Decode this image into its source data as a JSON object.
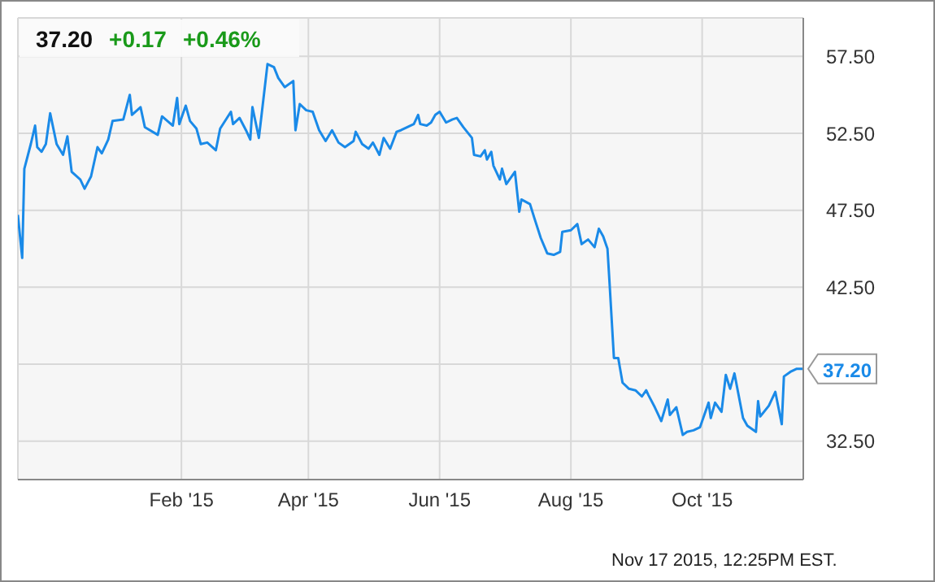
{
  "chart_data": {
    "type": "line",
    "title": "37.20",
    "annotations": [
      "+0.17",
      "+0.46%",
      {
        "text": "37.20",
        "x": "2015-11-17",
        "y": 37.2
      },
      "Nov 17 2015, 12:25PM EST."
    ],
    "x": [
      "2014-11-17",
      "2014-11-19",
      "2014-11-20",
      "2014-11-23",
      "2014-11-25",
      "2014-11-26",
      "2014-11-28",
      "2014-11-30",
      "2014-12-02",
      "2014-12-05",
      "2014-12-08",
      "2014-12-10",
      "2014-12-12",
      "2014-12-16",
      "2014-12-18",
      "2014-12-21",
      "2014-12-24",
      "2014-12-26",
      "2014-12-29",
      "2014-12-31",
      "2015-01-05",
      "2015-01-08",
      "2015-01-09",
      "2015-01-13",
      "2015-01-15",
      "2015-01-21",
      "2015-01-23",
      "2015-01-28",
      "2015-01-30",
      "2015-01-31",
      "2015-02-03",
      "2015-02-05",
      "2015-02-08",
      "2015-02-10",
      "2015-02-13",
      "2015-02-17",
      "2015-02-19",
      "2015-02-24",
      "2015-02-25",
      "2015-02-28",
      "2015-03-03",
      "2015-03-05",
      "2015-03-06",
      "2015-03-09",
      "2015-03-11",
      "2015-03-13",
      "2015-03-16",
      "2015-03-18",
      "2015-03-21",
      "2015-03-25",
      "2015-03-26",
      "2015-03-28",
      "2015-03-31",
      "2015-04-03",
      "2015-04-06",
      "2015-04-09",
      "2015-04-12",
      "2015-04-15",
      "2015-04-18",
      "2015-04-22",
      "2015-04-23",
      "2015-04-26",
      "2015-04-29",
      "2015-05-01",
      "2015-05-04",
      "2015-05-06",
      "2015-05-09",
      "2015-05-12",
      "2015-05-14",
      "2015-05-20",
      "2015-05-22",
      "2015-05-23",
      "2015-05-26",
      "2015-05-28",
      "2015-05-30",
      "2015-06-01",
      "2015-06-04",
      "2015-06-07",
      "2015-06-09",
      "2015-06-12",
      "2015-06-16",
      "2015-06-17",
      "2015-06-20",
      "2015-06-22",
      "2015-06-23",
      "2015-06-25",
      "2015-06-26",
      "2015-06-29",
      "2015-06-30",
      "2015-07-02",
      "2015-07-06",
      "2015-07-08",
      "2015-07-09",
      "2015-07-13",
      "2015-07-15",
      "2015-07-18",
      "2015-07-21",
      "2015-07-24",
      "2015-07-27",
      "2015-07-28",
      "2015-08-01",
      "2015-08-04",
      "2015-08-06",
      "2015-08-09",
      "2015-08-12",
      "2015-08-14",
      "2015-08-16",
      "2015-08-18",
      "2015-08-19",
      "2015-08-21",
      "2015-08-23",
      "2015-08-25",
      "2015-08-28",
      "2015-08-31",
      "2015-09-03",
      "2015-09-05",
      "2015-09-06",
      "2015-09-09",
      "2015-09-12",
      "2015-09-15",
      "2015-09-16",
      "2015-09-19",
      "2015-09-22",
      "2015-09-24",
      "2015-09-27",
      "2015-09-30",
      "2015-10-04",
      "2015-10-05",
      "2015-10-07",
      "2015-10-10",
      "2015-10-12",
      "2015-10-14",
      "2015-10-16",
      "2015-10-20",
      "2015-10-22",
      "2015-10-26",
      "2015-10-27",
      "2015-10-28",
      "2015-11-01",
      "2015-11-04",
      "2015-11-07",
      "2015-11-08",
      "2015-11-11",
      "2015-11-14",
      "2015-11-17"
    ],
    "series": [
      {
        "color": "#1a8ae8",
        "values": [
          47.2,
          44.4,
          50.2,
          51.8,
          53.0,
          51.6,
          51.3,
          51.8,
          53.8,
          51.8,
          51.1,
          52.3,
          50.0,
          49.5,
          48.9,
          49.7,
          51.6,
          51.2,
          52.1,
          53.3,
          53.4,
          55.0,
          53.7,
          54.2,
          52.9,
          52.4,
          53.6,
          53.0,
          54.8,
          53.1,
          54.3,
          53.3,
          52.8,
          51.8,
          51.9,
          51.4,
          52.8,
          53.9,
          53.1,
          53.5,
          52.7,
          52.1,
          54.2,
          52.2,
          54.6,
          57.0,
          56.8,
          56.1,
          55.5,
          55.9,
          52.7,
          54.4,
          54.0,
          53.9,
          52.7,
          52.0,
          52.7,
          51.9,
          51.6,
          52.0,
          52.6,
          51.8,
          51.5,
          51.9,
          51.1,
          52.2,
          51.5,
          52.6,
          52.7,
          53.1,
          53.7,
          53.1,
          53.0,
          53.2,
          53.7,
          53.9,
          53.2,
          53.4,
          53.5,
          52.9,
          52.2,
          51.1,
          51.0,
          51.4,
          50.8,
          51.3,
          50.4,
          49.5,
          50.2,
          49.2,
          50.0,
          47.4,
          48.2,
          47.9,
          47.0,
          45.7,
          44.7,
          44.6,
          44.8,
          46.1,
          46.2,
          46.6,
          45.3,
          45.6,
          45.1,
          46.3,
          45.8,
          45.0,
          42.7,
          37.9,
          37.9,
          36.3,
          35.9,
          35.8,
          35.4,
          35.8,
          35.5,
          34.7,
          33.8,
          35.2,
          34.2,
          34.7,
          32.9,
          33.1,
          33.2,
          33.4,
          35.0,
          34.0,
          35.0,
          34.4,
          36.8,
          35.9,
          36.9,
          34.0,
          33.5,
          33.1,
          35.1,
          34.1,
          34.8,
          35.7,
          33.6,
          36.7,
          37.0,
          37.2,
          37.2
        ]
      }
    ],
    "xlim": [
      "2014-11-17",
      "2015-11-17"
    ],
    "xticks": [
      {
        "value": "2015-02-01",
        "label": "Feb '15"
      },
      {
        "value": "2015-04-01",
        "label": "Apr '15"
      },
      {
        "value": "2015-06-01",
        "label": "Jun '15"
      },
      {
        "value": "2015-08-01",
        "label": "Aug '15"
      },
      {
        "value": "2015-10-01",
        "label": "Oct '15"
      }
    ],
    "ylim": [
      30,
      60
    ],
    "yticks": [
      {
        "value": 32.5,
        "label": "32.50"
      },
      {
        "value": 37.5,
        "label": null
      },
      {
        "value": 42.5,
        "label": "42.50"
      },
      {
        "value": 47.5,
        "label": "47.50"
      },
      {
        "value": 52.5,
        "label": "52.50"
      },
      {
        "value": 57.5,
        "label": "57.50"
      }
    ],
    "grid": true,
    "marker": "none",
    "line_style": "solid"
  }
}
